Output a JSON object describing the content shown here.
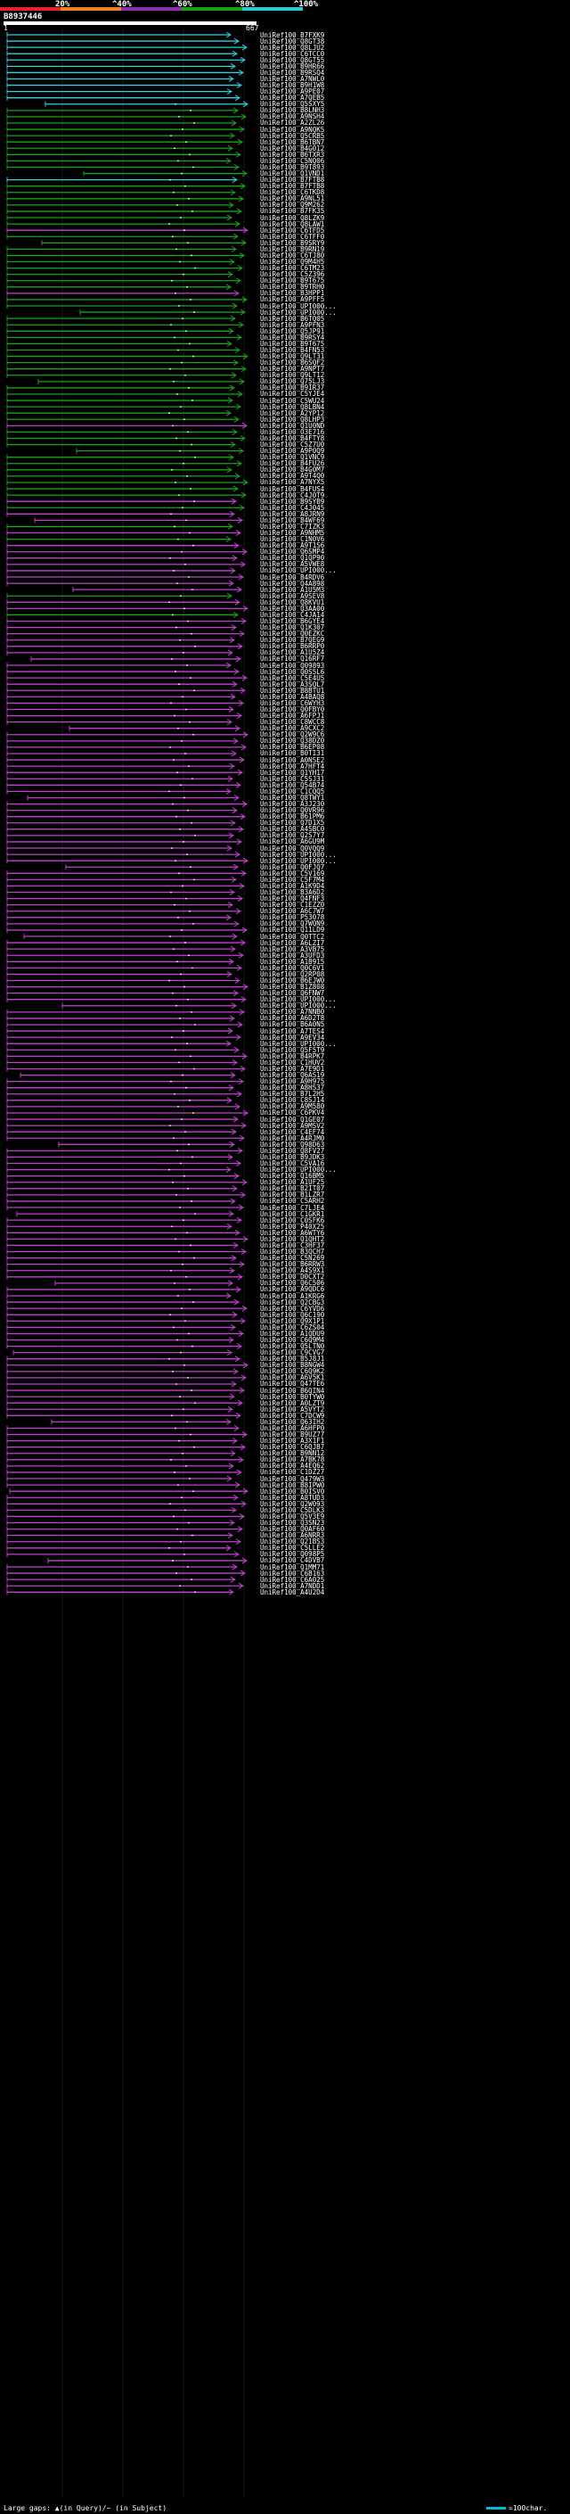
{
  "legend": {
    "labels": [
      "20%",
      "^40%",
      "^60%",
      "^80%",
      "^100%"
    ],
    "colors": [
      "#e8202a",
      "#f08020",
      "#8e2fb0",
      "#1aa21a",
      "#2fc8d8"
    ]
  },
  "query": {
    "id": "B8937446",
    "start": "1",
    "end": "667"
  },
  "hits": [
    {
      "id": "UniRef100_B7FXK9",
      "c": "cyan"
    },
    {
      "id": "UniRef100_Q8GT38",
      "c": "cyan"
    },
    {
      "id": "UniRef100_Q8LJU2",
      "c": "cyan"
    },
    {
      "id": "UniRef100_C6TCC0",
      "c": "cyan"
    },
    {
      "id": "UniRef100_Q8GT55",
      "c": "cyan"
    },
    {
      "id": "UniRef100_B9HR66",
      "c": "cyan"
    },
    {
      "id": "UniRef100_B9RSQ4",
      "c": "cyan"
    },
    {
      "id": "UniRef100_A7NWL0",
      "c": "cyan"
    },
    {
      "id": "UniRef100_B9H1W8",
      "c": "cyan"
    },
    {
      "id": "UniRef100_A9PE07",
      "c": "cyan"
    },
    {
      "id": "UniRef100_A7QEB5",
      "c": "cyan"
    },
    {
      "id": "UniRef100_Q5SXY5",
      "c": "cyan"
    },
    {
      "id": "UniRef100_B8LNH3",
      "c": "green"
    },
    {
      "id": "UniRef100_A9NSH4",
      "c": "green"
    },
    {
      "id": "UniRef100_A2ZL26",
      "c": "green"
    },
    {
      "id": "UniRef100_A9NQK5",
      "c": "green"
    },
    {
      "id": "UniRef100_Q5CRB5",
      "c": "green"
    },
    {
      "id": "UniRef100_B6TBN7",
      "c": "green"
    },
    {
      "id": "UniRef100_B4G012",
      "c": "green"
    },
    {
      "id": "UniRef100_B6TXR3",
      "c": "green"
    },
    {
      "id": "UniRef100_C5NQ06",
      "c": "green"
    },
    {
      "id": "UniRef100_B9T893",
      "c": "green"
    },
    {
      "id": "UniRef100_Q1VND1",
      "c": "green"
    },
    {
      "id": "UniRef100_B7FTB8",
      "c": "cyan"
    },
    {
      "id": "UniRef100_B7FTB8",
      "c": "green"
    },
    {
      "id": "UniRef100_C6TKD8",
      "c": "green"
    },
    {
      "id": "UniRef100_A9NL51",
      "c": "green"
    },
    {
      "id": "UniRef100_Q9M262",
      "c": "green"
    },
    {
      "id": "UniRef100_B7FK35",
      "c": "green"
    },
    {
      "id": "UniRef100_Q8LZK9",
      "c": "green"
    },
    {
      "id": "UniRef100_Q8LAW1",
      "c": "green"
    },
    {
      "id": "UniRef100_C6TFD5",
      "c": "magenta"
    },
    {
      "id": "UniRef100_C6TFF0",
      "c": "green"
    },
    {
      "id": "UniRef100_B9SRY9",
      "c": "green"
    },
    {
      "id": "UniRef100_B9RN19",
      "c": "green"
    },
    {
      "id": "UniRef100_C6TJ80",
      "c": "green"
    },
    {
      "id": "UniRef100_Q9M4H5",
      "c": "green"
    },
    {
      "id": "UniRef100_C6TM23",
      "c": "green"
    },
    {
      "id": "UniRef100_C5Z396",
      "c": "green"
    },
    {
      "id": "UniRef100_B9T675",
      "c": "green"
    },
    {
      "id": "UniRef100_B9TRH0",
      "c": "green"
    },
    {
      "id": "UniRef100_B3HPP1",
      "c": "magenta"
    },
    {
      "id": "UniRef100_A9PFF5",
      "c": "green"
    },
    {
      "id": "UniRef100_UPI000...",
      "c": "green"
    },
    {
      "id": "UniRef100_UPI000...",
      "c": "green"
    },
    {
      "id": "UniRef100_B6TQ05",
      "c": "green"
    },
    {
      "id": "UniRef100_A9PFN3",
      "c": "green"
    },
    {
      "id": "UniRef100_Q5JP91",
      "c": "green"
    },
    {
      "id": "UniRef100_B9RSY4",
      "c": "green"
    },
    {
      "id": "UniRef100_B9T675",
      "c": "green"
    },
    {
      "id": "UniRef100_B4FN53",
      "c": "green"
    },
    {
      "id": "UniRef100_Q9LT31",
      "c": "green"
    },
    {
      "id": "UniRef100_B6SQF2",
      "c": "green"
    },
    {
      "id": "UniRef100_A9NPT7",
      "c": "green"
    },
    {
      "id": "UniRef100_Q9LT12",
      "c": "green"
    },
    {
      "id": "UniRef100_Q75LJ3",
      "c": "green"
    },
    {
      "id": "UniRef100_B9IR37",
      "c": "green"
    },
    {
      "id": "UniRef100_C5YJE4",
      "c": "green"
    },
    {
      "id": "UniRef100_C5WU24",
      "c": "green"
    },
    {
      "id": "UniRef100_Q8LBN4",
      "c": "green"
    },
    {
      "id": "UniRef100_A2YP12",
      "c": "green"
    },
    {
      "id": "UniRef100_Q8LHP3",
      "c": "green"
    },
    {
      "id": "UniRef100_Q1U0ND",
      "c": "magenta"
    },
    {
      "id": "UniRef100_O3E716",
      "c": "green"
    },
    {
      "id": "UniRef100_B4FTY8",
      "c": "green"
    },
    {
      "id": "UniRef100_C5Z7U0",
      "c": "green"
    },
    {
      "id": "UniRef100_A9P0Q9",
      "c": "green"
    },
    {
      "id": "UniRef100_Q1VNC9",
      "c": "green"
    },
    {
      "id": "UniRef100_B4FU26",
      "c": "green"
    },
    {
      "id": "UniRef100_B4G0M7",
      "c": "green"
    },
    {
      "id": "UniRef100_A9T4Q0",
      "c": "green"
    },
    {
      "id": "UniRef100_A7NYX5",
      "c": "green"
    },
    {
      "id": "UniRef100_B4FUS4",
      "c": "green"
    },
    {
      "id": "UniRef100_C4J0T9",
      "c": "green"
    },
    {
      "id": "UniRef100_B9SYB9",
      "c": "magenta"
    },
    {
      "id": "UniRef100_C4J045",
      "c": "green"
    },
    {
      "id": "UniRef100_A8JRN9",
      "c": "magenta"
    },
    {
      "id": "UniRef100_B4WF69",
      "c": "magenta"
    },
    {
      "id": "UniRef100_C7IZK3",
      "c": "green"
    },
    {
      "id": "UniRef100_A9NHM5",
      "c": "magenta"
    },
    {
      "id": "UniRef100_C1N0V6",
      "c": "green"
    },
    {
      "id": "UniRef100_A9T1S6",
      "c": "magenta"
    },
    {
      "id": "UniRef100_Q6SMP4",
      "c": "magenta"
    },
    {
      "id": "UniRef100_Q1QP90",
      "c": "magenta"
    },
    {
      "id": "UniRef100_A5VWE8",
      "c": "magenta"
    },
    {
      "id": "UniRef100_UPI000...",
      "c": "magenta"
    },
    {
      "id": "UniRef100_B4RDV6",
      "c": "magenta"
    },
    {
      "id": "UniRef100_Q4A898",
      "c": "magenta"
    },
    {
      "id": "UniRef100_A1U5M3",
      "c": "magenta"
    },
    {
      "id": "UniRef100_A9SEV8",
      "c": "green"
    },
    {
      "id": "UniRef100_Q8KVU1",
      "c": "magenta"
    },
    {
      "id": "UniRef100_Q3AA00",
      "c": "magenta"
    },
    {
      "id": "UniRef100_C4JA14",
      "c": "green"
    },
    {
      "id": "UniRef100_B6GYE4",
      "c": "magenta"
    },
    {
      "id": "UniRef100_Q1K307",
      "c": "magenta"
    },
    {
      "id": "UniRef100_Q0EZKC",
      "c": "magenta"
    },
    {
      "id": "UniRef100_B7QEG9",
      "c": "magenta"
    },
    {
      "id": "UniRef100_B6RRP0",
      "c": "magenta"
    },
    {
      "id": "UniRef100_A1U5Z4",
      "c": "magenta"
    },
    {
      "id": "UniRef100_Q16RF7",
      "c": "magenta"
    },
    {
      "id": "UniRef100_Q09893",
      "c": "magenta"
    },
    {
      "id": "UniRef100_Q0S5L6",
      "c": "magenta"
    },
    {
      "id": "UniRef100_C5E4U5",
      "c": "magenta"
    },
    {
      "id": "UniRef100_A3SQL7",
      "c": "magenta"
    },
    {
      "id": "UniRef100_B8BTU1",
      "c": "magenta"
    },
    {
      "id": "UniRef100_A4BAQ8",
      "c": "magenta"
    },
    {
      "id": "UniRef100_C6WYH3",
      "c": "magenta"
    },
    {
      "id": "UniRef100_Q0FBY0",
      "c": "magenta"
    },
    {
      "id": "UniRef100_A6FPJ1",
      "c": "magenta"
    },
    {
      "id": "UniRef100_C8WCC8",
      "c": "magenta"
    },
    {
      "id": "UniRef100_A9CXC2",
      "c": "magenta"
    },
    {
      "id": "UniRef100_Q2W9C6",
      "c": "magenta"
    },
    {
      "id": "UniRef100_Q38DZ0",
      "c": "magenta"
    },
    {
      "id": "UniRef100_B6EP08",
      "c": "magenta"
    },
    {
      "id": "UniRef100_B0TI31",
      "c": "magenta"
    },
    {
      "id": "UniRef100_A0NSE2",
      "c": "magenta"
    },
    {
      "id": "UniRef100_A7HFT4",
      "c": "magenta"
    },
    {
      "id": "UniRef100_Q1YH17",
      "c": "magenta"
    },
    {
      "id": "UniRef100_C5SJ31",
      "c": "magenta"
    },
    {
      "id": "UniRef100_Q54B74",
      "c": "magenta"
    },
    {
      "id": "UniRef100_C1CQQ5",
      "c": "magenta"
    },
    {
      "id": "UniRef100_Q8TWY1",
      "c": "magenta"
    },
    {
      "id": "UniRef100_A3J230",
      "c": "magenta"
    },
    {
      "id": "UniRef100_Q0VR96",
      "c": "magenta"
    },
    {
      "id": "UniRef100_B61PM6",
      "c": "magenta"
    },
    {
      "id": "UniRef100_Q7D1X5",
      "c": "magenta"
    },
    {
      "id": "UniRef100_A4SBC0",
      "c": "magenta"
    },
    {
      "id": "UniRef100_Q2S7Y7",
      "c": "magenta"
    },
    {
      "id": "UniRef100_A6GU9M",
      "c": "magenta"
    },
    {
      "id": "UniRef100_Q0VQQ9",
      "c": "magenta"
    },
    {
      "id": "UniRef100_UPI000...",
      "c": "magenta"
    },
    {
      "id": "UniRef100_UPI000...",
      "c": "magenta"
    },
    {
      "id": "UniRef100_Q0FJQ7",
      "c": "magenta"
    },
    {
      "id": "UniRef100_C5V169",
      "c": "magenta"
    },
    {
      "id": "UniRef100_C5F7M4",
      "c": "magenta"
    },
    {
      "id": "UniRef100_A1K9D4",
      "c": "magenta"
    },
    {
      "id": "UniRef100_B3A6D2",
      "c": "magenta"
    },
    {
      "id": "UniRef100_Q4FNF3",
      "c": "magenta"
    },
    {
      "id": "UniRef100_C1EZZ0",
      "c": "magenta"
    },
    {
      "id": "UniRef100_A6C7W7",
      "c": "magenta"
    },
    {
      "id": "UniRef100_P53078",
      "c": "magenta"
    },
    {
      "id": "UniRef100_Q7WQN9",
      "c": "magenta"
    },
    {
      "id": "UniRef100_Q11LD9",
      "c": "magenta"
    },
    {
      "id": "UniRef100_Q0TTC2",
      "c": "magenta"
    },
    {
      "id": "UniRef100_A6LZI7",
      "c": "magenta"
    },
    {
      "id": "UniRef100_A3VB75",
      "c": "magenta"
    },
    {
      "id": "UniRef100_A3UFD3",
      "c": "magenta"
    },
    {
      "id": "UniRef100_A1B915",
      "c": "magenta"
    },
    {
      "id": "UniRef100_Q0C6V1",
      "c": "magenta"
    },
    {
      "id": "UniRef100_Q2RP08",
      "c": "magenta"
    },
    {
      "id": "UniRef100_B6EJW0",
      "c": "magenta"
    },
    {
      "id": "UniRef100_B1Z808",
      "c": "magenta"
    },
    {
      "id": "UniRef100_Q6FNW7",
      "c": "magenta"
    },
    {
      "id": "UniRef100_UPI000...",
      "c": "magenta"
    },
    {
      "id": "UniRef100_UPI000...",
      "c": "magenta"
    },
    {
      "id": "UniRef100_A7NNB0",
      "c": "magenta"
    },
    {
      "id": "UniRef100_A6D2T8",
      "c": "magenta"
    },
    {
      "id": "UniRef100_B6A0N5",
      "c": "magenta"
    },
    {
      "id": "UniRef100_A7TES4",
      "c": "magenta"
    },
    {
      "id": "UniRef100_A9EV34",
      "c": "magenta"
    },
    {
      "id": "UniRef100_UPI000...",
      "c": "magenta"
    },
    {
      "id": "UniRef100_Q5F5T9",
      "c": "magenta"
    },
    {
      "id": "UniRef100_B4RPK7",
      "c": "magenta"
    },
    {
      "id": "UniRef100_C1HUV2",
      "c": "magenta"
    },
    {
      "id": "UniRef100_A7E9D1",
      "c": "magenta"
    },
    {
      "id": "UniRef100_Q6AS19",
      "c": "magenta"
    },
    {
      "id": "UniRef100_A9H975",
      "c": "magenta"
    },
    {
      "id": "UniRef100_A8HS37",
      "c": "magenta"
    },
    {
      "id": "UniRef100_B7L2H5",
      "c": "magenta"
    },
    {
      "id": "UniRef100_C8SJ14",
      "c": "magenta"
    },
    {
      "id": "UniRef100_A9M580",
      "c": "magenta"
    },
    {
      "id": "UniRef100_C6PKV4",
      "c": "magenta"
    },
    {
      "id": "UniRef100_Q1GE07",
      "c": "magenta"
    },
    {
      "id": "UniRef100_A9MSV2",
      "c": "magenta"
    },
    {
      "id": "UniRef100_C4EF74",
      "c": "magenta"
    },
    {
      "id": "UniRef100_A4RJM0",
      "c": "magenta"
    },
    {
      "id": "UniRef100_Q98D63",
      "c": "magenta"
    },
    {
      "id": "UniRef100_Q8FV27",
      "c": "magenta"
    },
    {
      "id": "UniRef100_B9JDK3",
      "c": "magenta"
    },
    {
      "id": "UniRef100_C5VA16",
      "c": "magenta"
    },
    {
      "id": "UniRef100_UPI000...",
      "c": "magenta"
    },
    {
      "id": "UniRef100_Q16BM5",
      "c": "magenta"
    },
    {
      "id": "UniRef100_A1UF25",
      "c": "magenta"
    },
    {
      "id": "UniRef100_B2IT07",
      "c": "magenta"
    },
    {
      "id": "UniRef100_B1LZR7",
      "c": "magenta"
    },
    {
      "id": "UniRef100_C5ARH2",
      "c": "magenta"
    },
    {
      "id": "UniRef100_C7LJE4",
      "c": "magenta"
    },
    {
      "id": "UniRef100_C1GKR1",
      "c": "magenta"
    },
    {
      "id": "UniRef100_C0SFK6",
      "c": "magenta"
    },
    {
      "id": "UniRef100_P40X25",
      "c": "magenta"
    },
    {
      "id": "UniRef100_A6WTY6",
      "c": "magenta"
    },
    {
      "id": "UniRef100_Q1QHT2",
      "c": "magenta"
    },
    {
      "id": "UniRef100_C3HF37",
      "c": "magenta"
    },
    {
      "id": "UniRef100_B3QCH7",
      "c": "magenta"
    },
    {
      "id": "UniRef100_C5N269",
      "c": "magenta"
    },
    {
      "id": "UniRef100_B6RRW3",
      "c": "magenta"
    },
    {
      "id": "UniRef100_A4S9X1",
      "c": "magenta"
    },
    {
      "id": "UniRef100_D0CXT2",
      "c": "magenta"
    },
    {
      "id": "UniRef100_Q6C506",
      "c": "magenta"
    },
    {
      "id": "UniRef100_A9QDC6",
      "c": "magenta"
    },
    {
      "id": "UniRef100_A1KRG6",
      "c": "magenta"
    },
    {
      "id": "UniRef100_Q2CBG3",
      "c": "magenta"
    },
    {
      "id": "UniRef100_C6YVD6",
      "c": "magenta"
    },
    {
      "id": "UniRef100_Q6C190",
      "c": "magenta"
    },
    {
      "id": "UniRef100_Q9X1P1",
      "c": "magenta"
    },
    {
      "id": "UniRef100_C6ZS04",
      "c": "magenta"
    },
    {
      "id": "UniRef100_A1QDU9",
      "c": "magenta"
    },
    {
      "id": "UniRef100_C6Q9M4",
      "c": "magenta"
    },
    {
      "id": "UniRef100_Q5LTN0",
      "c": "magenta"
    },
    {
      "id": "UniRef100_C9CVG7",
      "c": "magenta"
    },
    {
      "id": "UniRef100_B5J8J1",
      "c": "magenta"
    },
    {
      "id": "UniRef100_B8NGW4",
      "c": "magenta"
    },
    {
      "id": "UniRef100_C6Q9K2",
      "c": "magenta"
    },
    {
      "id": "UniRef100_A6V5K1",
      "c": "magenta"
    },
    {
      "id": "UniRef100_Q47TE6",
      "c": "magenta"
    },
    {
      "id": "UniRef100_B6QIN4",
      "c": "magenta"
    },
    {
      "id": "UniRef100_B0TYW0",
      "c": "magenta"
    },
    {
      "id": "UniRef100_A0LZT9",
      "c": "magenta"
    },
    {
      "id": "UniRef100_A5VYT2",
      "c": "magenta"
    },
    {
      "id": "UniRef100_C7DCW9",
      "c": "magenta"
    },
    {
      "id": "UniRef100_Q63IH2",
      "c": "magenta"
    },
    {
      "id": "UniRef100_A6HFP0",
      "c": "magenta"
    },
    {
      "id": "UniRef100_B9UZ77",
      "c": "magenta"
    },
    {
      "id": "UniRef100_A3X1F1",
      "c": "magenta"
    },
    {
      "id": "UniRef100_C6QJB7",
      "c": "magenta"
    },
    {
      "id": "UniRef100_B9NN12",
      "c": "magenta"
    },
    {
      "id": "UniRef100_A7BK78",
      "c": "magenta"
    },
    {
      "id": "UniRef100_A4EQ62",
      "c": "magenta"
    },
    {
      "id": "UniRef100_C1DZ27",
      "c": "magenta"
    },
    {
      "id": "UniRef100_Q479W3",
      "c": "magenta"
    },
    {
      "id": "UniRef100_B8IPW0",
      "c": "magenta"
    },
    {
      "id": "UniRef100_B0ISV0",
      "c": "magenta"
    },
    {
      "id": "UniRef100_A8TUD3",
      "c": "magenta"
    },
    {
      "id": "UniRef100_Q2W093",
      "c": "magenta"
    },
    {
      "id": "UniRef100_C5DLK3",
      "c": "magenta"
    },
    {
      "id": "UniRef100_Q5V3E9",
      "c": "magenta"
    },
    {
      "id": "UniRef100_Q3SN23",
      "c": "magenta"
    },
    {
      "id": "UniRef100_Q0AF60",
      "c": "magenta"
    },
    {
      "id": "UniRef100_A6NRR3",
      "c": "magenta"
    },
    {
      "id": "UniRef100_Q21BS3",
      "c": "magenta"
    },
    {
      "id": "UniRef100_C5LLE2",
      "c": "magenta"
    },
    {
      "id": "UniRef100_Q098P5",
      "c": "magenta"
    },
    {
      "id": "UniRef100_C4DVB7",
      "c": "magenta"
    },
    {
      "id": "UniRef100_Q1MM71",
      "c": "magenta"
    },
    {
      "id": "UniRef100_C6B163",
      "c": "magenta"
    },
    {
      "id": "UniRef100_C6A025",
      "c": "magenta"
    },
    {
      "id": "UniRef100_A7NDD1",
      "c": "magenta"
    },
    {
      "id": "UniRef100_A4U2D4",
      "c": "magenta"
    }
  ],
  "footer": {
    "text": "Large gaps: ▲(in Query)/~ (in Subject)",
    "key": "=100char."
  }
}
